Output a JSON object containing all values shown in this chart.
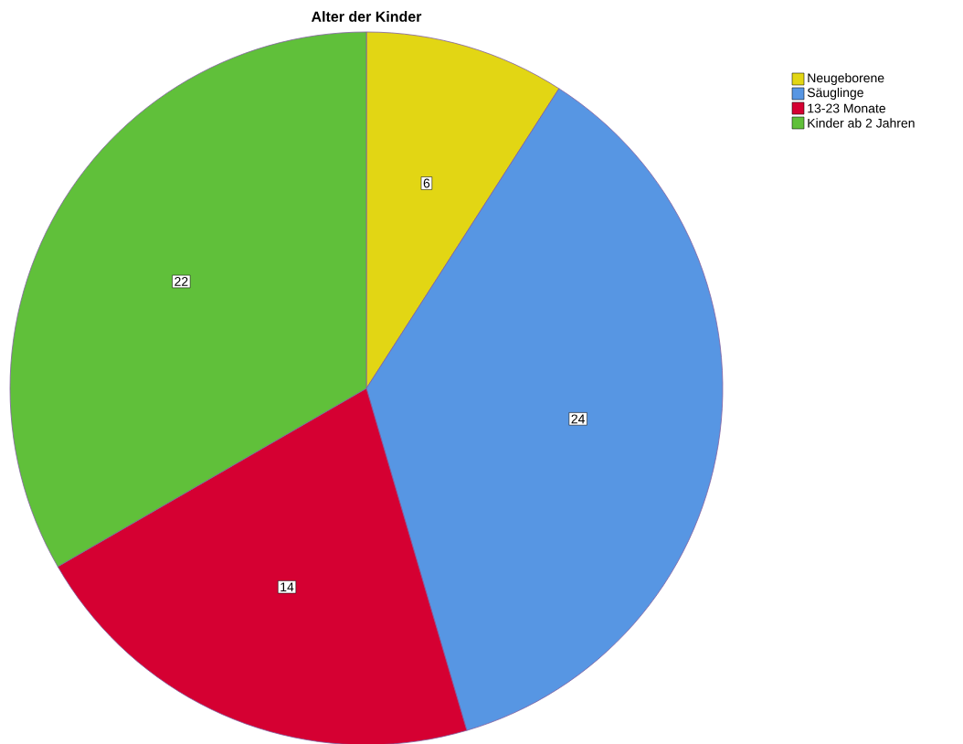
{
  "chart_data": {
    "type": "pie",
    "title": "Alter der Kinder",
    "categories": [
      "Neugeborene",
      "Säuglinge",
      "13-23 Monate",
      "Kinder ab 2 Jahren"
    ],
    "values": [
      6,
      24,
      14,
      22
    ],
    "colors": [
      "#e2d614",
      "#5796e3",
      "#d50032",
      "#60c03a"
    ],
    "data_labels": true,
    "legend": "top right"
  }
}
